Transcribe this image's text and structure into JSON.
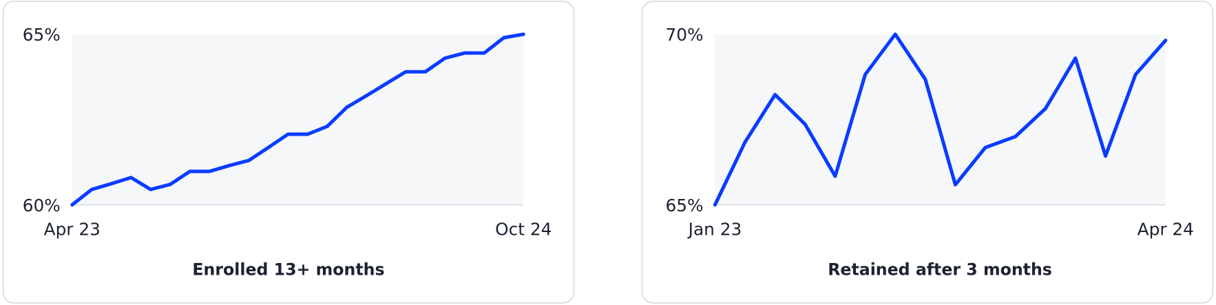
{
  "chart_data": [
    {
      "type": "line",
      "title": "Enrolled 13+ months",
      "categories": [
        "Apr 23",
        null,
        null,
        null,
        null,
        null,
        null,
        null,
        null,
        null,
        null,
        null,
        null,
        null,
        null,
        null,
        null,
        null,
        null,
        null,
        null,
        null,
        null,
        "Oct 24"
      ],
      "series": [
        {
          "color": "#0a3cff",
          "values": [
            60.0,
            60.45,
            60.62,
            60.8,
            60.45,
            60.6,
            60.98,
            60.98,
            61.15,
            61.3,
            61.68,
            62.07,
            62.07,
            62.3,
            62.86,
            63.2,
            63.55,
            63.9,
            63.9,
            64.3,
            64.45,
            64.45,
            64.9,
            65.0
          ]
        }
      ],
      "ylim": [
        60,
        65
      ],
      "yticks": [
        {
          "value": 60,
          "label": "60%"
        },
        {
          "value": 65,
          "label": "65%"
        }
      ]
    },
    {
      "type": "line",
      "title": "Retained after 3 months",
      "categories": [
        "Jan 23",
        null,
        null,
        null,
        null,
        null,
        null,
        null,
        null,
        null,
        null,
        null,
        null,
        null,
        null,
        "Apr 24"
      ],
      "series": [
        {
          "color": "#0a3cff",
          "values": [
            65.0,
            66.84,
            68.23,
            67.36,
            65.84,
            68.82,
            70.0,
            68.68,
            65.59,
            66.68,
            67.0,
            67.82,
            69.3,
            66.43,
            68.82,
            69.82
          ]
        }
      ],
      "ylim": [
        65,
        70
      ],
      "yticks": [
        {
          "value": 65,
          "label": "65%"
        },
        {
          "value": 70,
          "label": "70%"
        }
      ]
    }
  ]
}
